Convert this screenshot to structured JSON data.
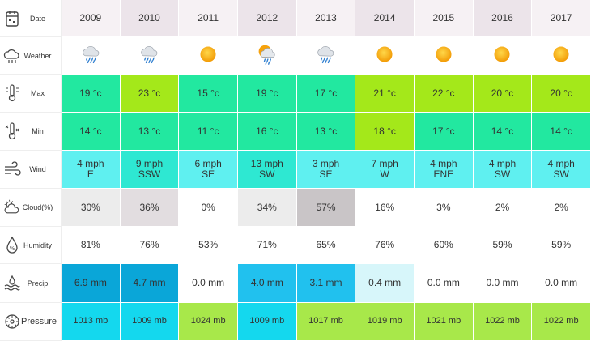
{
  "labels": {
    "date": "Date",
    "weather": "Weather",
    "max": "Max",
    "min": "Min",
    "wind": "Wind",
    "cloud": "Cloud(%)",
    "humidity": "Humidity",
    "precip": "Precip",
    "pressure": "Pressure"
  },
  "colors": {
    "year_a": "#f6f1f4",
    "year_b": "#ece4ea",
    "temp_green": "#22e8a0",
    "temp_lime": "#a4e81a",
    "wind_cyan": "#5ff0f0",
    "wind_teal": "#2ee8d2",
    "cloud_light": "#ececec",
    "cloud_mid": "#e2dde0",
    "cloud_dark": "#c9c5c7",
    "precip_blue": "#0aa6d8",
    "precip_sky": "#21c1ee",
    "precip_pale": "#d7f6fa",
    "press_cyan": "#14d8ee",
    "press_lime": "#a8e84a",
    "press_blue": "#33ccff"
  },
  "years": [
    {
      "year": "2009",
      "weather": "rain-cloud-icon",
      "max": "19 °c",
      "min": "14 °c",
      "wind_speed": "4 mph",
      "wind_dir": "E",
      "cloud": "30%",
      "humidity": "81%",
      "precip": "6.9 mm",
      "pressure": "1013 mb",
      "c_year": "#f6f1f4",
      "c_max": "#22e8a0",
      "c_min": "#22e8a0",
      "c_wind": "#5ff0f0",
      "c_cloud": "#ececec",
      "c_precip": "#0aa6d8",
      "c_press": "#14d8ee"
    },
    {
      "year": "2010",
      "weather": "rain-cloud-icon",
      "max": "23 °c",
      "min": "13 °c",
      "wind_speed": "9 mph",
      "wind_dir": "SSW",
      "cloud": "36%",
      "humidity": "76%",
      "precip": "4.7 mm",
      "pressure": "1009 mb",
      "c_year": "#ece4ea",
      "c_max": "#a4e81a",
      "c_min": "#22e8a0",
      "c_wind": "#2ee8d2",
      "c_cloud": "#e2dde0",
      "c_precip": "#0aa6d8",
      "c_press": "#14d8ee"
    },
    {
      "year": "2011",
      "weather": "sun-icon",
      "max": "15 °c",
      "min": "11 °c",
      "wind_speed": "6 mph",
      "wind_dir": "SE",
      "cloud": "0%",
      "humidity": "53%",
      "precip": "0.0 mm",
      "pressure": "1024 mb",
      "c_year": "#f6f1f4",
      "c_max": "#22e8a0",
      "c_min": "#22e8a0",
      "c_wind": "#5ff0f0",
      "c_cloud": "#ffffff",
      "c_precip": "#ffffff",
      "c_press": "#a8e84a"
    },
    {
      "year": "2012",
      "weather": "sun-rain-cloud-icon",
      "max": "19 °c",
      "min": "16 °c",
      "wind_speed": "13 mph",
      "wind_dir": "SW",
      "cloud": "34%",
      "humidity": "71%",
      "precip": "4.0 mm",
      "pressure": "1009 mb",
      "c_year": "#ece4ea",
      "c_max": "#22e8a0",
      "c_min": "#22e8a0",
      "c_wind": "#2ee8d2",
      "c_cloud": "#ececec",
      "c_precip": "#21c1ee",
      "c_press": "#14d8ee"
    },
    {
      "year": "2013",
      "weather": "rain-cloud-icon",
      "max": "17 °c",
      "min": "13 °c",
      "wind_speed": "3 mph",
      "wind_dir": "SE",
      "cloud": "57%",
      "humidity": "65%",
      "precip": "3.1 mm",
      "pressure": "1017 mb",
      "c_year": "#f6f1f4",
      "c_max": "#22e8a0",
      "c_min": "#22e8a0",
      "c_wind": "#5ff0f0",
      "c_cloud": "#c9c5c7",
      "c_precip": "#21c1ee",
      "c_press": "#a8e84a"
    },
    {
      "year": "2014",
      "weather": "sun-icon",
      "max": "21 °c",
      "min": "18 °c",
      "wind_speed": "7 mph",
      "wind_dir": "W",
      "cloud": "16%",
      "humidity": "76%",
      "precip": "0.4 mm",
      "pressure": "1019 mb",
      "c_year": "#ece4ea",
      "c_max": "#a4e81a",
      "c_min": "#a4e81a",
      "c_wind": "#5ff0f0",
      "c_cloud": "#ffffff",
      "c_precip": "#d7f6fa",
      "c_press": "#a8e84a"
    },
    {
      "year": "2015",
      "weather": "sun-icon",
      "max": "22 °c",
      "min": "17 °c",
      "wind_speed": "4 mph",
      "wind_dir": "ENE",
      "cloud": "3%",
      "humidity": "60%",
      "precip": "0.0 mm",
      "pressure": "1021 mb",
      "c_year": "#f6f1f4",
      "c_max": "#a4e81a",
      "c_min": "#22e8a0",
      "c_wind": "#5ff0f0",
      "c_cloud": "#ffffff",
      "c_precip": "#ffffff",
      "c_press": "#a8e84a"
    },
    {
      "year": "2016",
      "weather": "sun-icon",
      "max": "20 °c",
      "min": "14 °c",
      "wind_speed": "4 mph",
      "wind_dir": "SW",
      "cloud": "2%",
      "humidity": "59%",
      "precip": "0.0 mm",
      "pressure": "1022 mb",
      "c_year": "#ece4ea",
      "c_max": "#a4e81a",
      "c_min": "#22e8a0",
      "c_wind": "#5ff0f0",
      "c_cloud": "#ffffff",
      "c_precip": "#ffffff",
      "c_press": "#a8e84a"
    },
    {
      "year": "2017",
      "weather": "sun-icon",
      "max": "20 °c",
      "min": "14 °c",
      "wind_speed": "4 mph",
      "wind_dir": "SW",
      "cloud": "2%",
      "humidity": "59%",
      "precip": "0.0 mm",
      "pressure": "1022 mb",
      "c_year": "#f6f1f4",
      "c_max": "#a4e81a",
      "c_min": "#22e8a0",
      "c_wind": "#5ff0f0",
      "c_cloud": "#ffffff",
      "c_precip": "#ffffff",
      "c_press": "#a8e84a"
    }
  ]
}
